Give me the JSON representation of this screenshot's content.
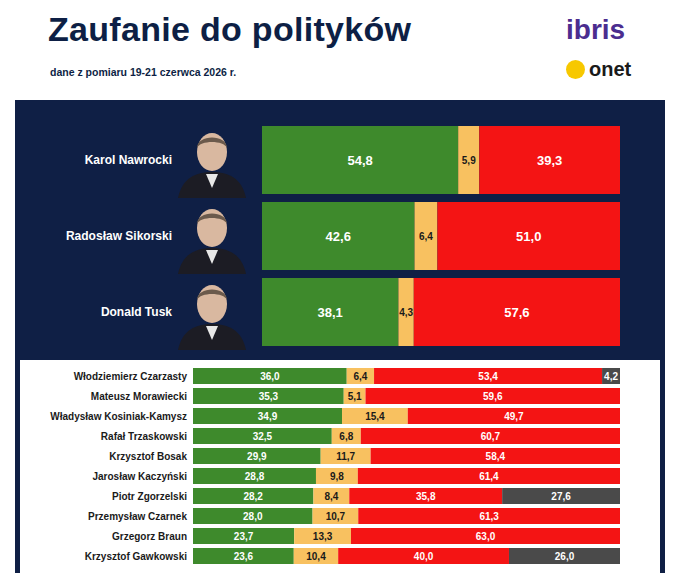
{
  "header": {
    "title": "Zaufanie do polityków",
    "subtitle": "dane z pomiaru 19-21 czerwca 2026 r.",
    "logos": [
      "ibris",
      "onet"
    ]
  },
  "chart_data": [
    {
      "type": "bar",
      "orientation": "horizontal",
      "stacked": true,
      "data_labels": true,
      "tick_labels": "y",
      "grid": false,
      "xlim": [
        0,
        100
      ],
      "categories": [
        "Karol Nawrocki",
        "Radosław Sikorski",
        "Donald Tusk"
      ],
      "series": [
        {
          "color": "#3e8a2c",
          "values": [
            54.8,
            42.6,
            38.1
          ],
          "value_labels": [
            "54,8",
            "42,6",
            "38,1"
          ]
        },
        {
          "color": "#f8c160",
          "values": [
            5.9,
            6.4,
            4.3
          ],
          "value_labels": [
            "5,9",
            "6,4",
            "4,3"
          ]
        },
        {
          "color": "#f41414",
          "values": [
            39.3,
            51.0,
            57.6
          ],
          "value_labels": [
            "39,3",
            "51,0",
            "57,6"
          ]
        }
      ]
    },
    {
      "type": "bar",
      "orientation": "horizontal",
      "stacked": true,
      "data_labels": true,
      "tick_labels": "y",
      "grid": false,
      "xlim": [
        0,
        100
      ],
      "categories": [
        "Włodziemierz Czarzasty",
        "Mateusz Morawiecki",
        "Władysław Kosiniak-Kamysz",
        "Rafał Trzaskowski",
        "Krzysztof Bosak",
        "Jarosław Kaczyński",
        "Piotr Zgorzelski",
        "Przemysław Czarnek",
        "Grzegorz Braun",
        "Krzysztof Gawkowski"
      ],
      "series": [
        {
          "color": "#3e8a2c",
          "values": [
            36.0,
            35.3,
            34.9,
            32.5,
            29.9,
            28.8,
            28.2,
            28.0,
            23.7,
            23.6
          ],
          "value_labels": [
            "36,0",
            "35,3",
            "34,9",
            "32,5",
            "29,9",
            "28,8",
            "28,2",
            "28,0",
            "23,7",
            "23,6"
          ]
        },
        {
          "color": "#f8c160",
          "values": [
            6.4,
            5.1,
            15.4,
            6.8,
            11.7,
            9.8,
            8.4,
            10.7,
            13.3,
            10.4
          ],
          "value_labels": [
            "6,4",
            "5,1",
            "15,4",
            "6,8",
            "11,7",
            "9,8",
            "8,4",
            "10,7",
            "13,3",
            "10,4"
          ]
        },
        {
          "color": "#f41414",
          "values": [
            53.4,
            59.6,
            49.7,
            60.7,
            58.4,
            61.4,
            35.8,
            61.3,
            63.0,
            40.0
          ],
          "value_labels": [
            "53,4",
            "59,6",
            "49,7",
            "60,7",
            "58,4",
            "61,4",
            "35,8",
            "61,3",
            "63,0",
            "40,0"
          ]
        },
        {
          "color": "#4a4a4a",
          "values": [
            4.2,
            null,
            null,
            null,
            null,
            null,
            27.6,
            null,
            null,
            26.0
          ],
          "value_labels": [
            "4,2",
            null,
            null,
            null,
            null,
            null,
            "27,6",
            null,
            null,
            "26,0"
          ]
        }
      ]
    }
  ]
}
